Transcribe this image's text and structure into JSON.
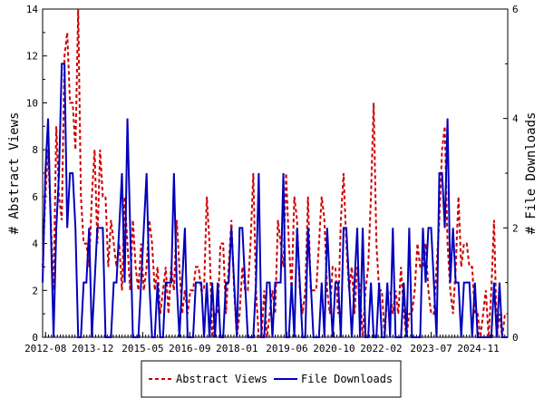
{
  "chart_data": {
    "type": "line",
    "ylabel": "# Abstract Views",
    "y2label": "# File Downloads",
    "ylim": [
      0,
      14
    ],
    "y2lim": [
      0,
      6
    ],
    "yticks": [
      0,
      2,
      4,
      6,
      8,
      10,
      12,
      14
    ],
    "y2ticks": [
      0,
      2,
      4,
      6
    ],
    "xtick_labels": [
      "2012-08",
      "2013-12",
      "2015-05",
      "2016-09",
      "2018-01",
      "2019-06",
      "2020-10",
      "2022-02",
      "2023-07",
      "2024-11"
    ],
    "x_start": "2012-07",
    "x_end": "2025-09",
    "legend_position": "bottom-center",
    "grid": false,
    "series": [
      {
        "name": "Abstract Views",
        "axis": "left",
        "color": "#cc0000",
        "style": "dashed",
        "values": [
          3,
          6,
          8,
          5,
          2,
          9,
          6,
          5,
          12,
          13,
          10,
          10,
          8,
          14,
          6,
          4,
          4,
          3,
          6,
          8,
          4,
          8,
          6,
          6,
          3,
          5,
          4,
          3,
          4,
          2,
          6,
          4,
          2,
          5,
          3,
          2,
          4,
          2,
          3,
          5,
          4,
          2,
          3,
          1,
          2,
          3,
          1,
          3,
          2,
          5,
          3,
          1,
          2,
          1,
          2,
          2,
          3,
          3,
          2,
          2,
          6,
          4,
          0,
          1,
          1,
          4,
          4,
          1,
          3,
          5,
          2,
          0,
          1,
          3,
          2,
          2,
          4,
          7,
          2,
          0,
          0,
          2,
          0,
          1,
          2,
          1,
          5,
          4,
          3,
          7,
          4,
          2,
          6,
          5,
          2,
          1,
          2,
          6,
          2,
          2,
          2,
          4,
          6,
          5,
          2,
          1,
          3,
          3,
          1,
          5,
          7,
          4,
          2,
          3,
          1,
          3,
          2,
          0,
          2,
          3,
          6,
          10,
          4,
          2,
          2,
          0,
          2,
          2,
          1,
          2,
          1,
          3,
          1,
          0,
          1,
          1,
          2,
          4,
          3,
          3,
          4,
          2,
          1,
          1,
          3,
          5,
          8,
          9,
          4,
          2,
          1,
          3,
          6,
          3,
          4,
          4,
          3,
          3,
          1,
          1,
          0,
          1,
          2,
          0,
          2,
          5,
          0,
          1,
          0,
          1,
          1
        ]
      },
      {
        "name": "File Downloads",
        "axis": "right",
        "color": "#0000bb",
        "style": "solid",
        "values": [
          1,
          3,
          4,
          2,
          0,
          2,
          3,
          5,
          5,
          2,
          3,
          3,
          2,
          0,
          0,
          1,
          1,
          2,
          0,
          1,
          2,
          2,
          2,
          0,
          0,
          0,
          1,
          1,
          2,
          3,
          1,
          4,
          2,
          0,
          0,
          0,
          1,
          2,
          3,
          1,
          0,
          0,
          1,
          0,
          0,
          1,
          1,
          1,
          3,
          1,
          0,
          1,
          2,
          0,
          0,
          0,
          1,
          1,
          1,
          0,
          1,
          0,
          1,
          0,
          1,
          0,
          0,
          1,
          1,
          2,
          1,
          0,
          2,
          2,
          1,
          0,
          0,
          0,
          1,
          3,
          0,
          0,
          1,
          1,
          0,
          1,
          1,
          1,
          3,
          0,
          0,
          1,
          0,
          2,
          1,
          0,
          0,
          2,
          1,
          0,
          0,
          0,
          1,
          0,
          2,
          1,
          0,
          1,
          1,
          0,
          2,
          2,
          1,
          0,
          1,
          2,
          0,
          2,
          0,
          0,
          1,
          0,
          0,
          1,
          0,
          0,
          1,
          0,
          2,
          0,
          0,
          0,
          1,
          0,
          2,
          0,
          0,
          0,
          0,
          2,
          1,
          2,
          2,
          1,
          0,
          3,
          3,
          2,
          4,
          1,
          2,
          1,
          1,
          0,
          1,
          1,
          1,
          0,
          1,
          0,
          0,
          0,
          0,
          0,
          0,
          1,
          0,
          1,
          0,
          0,
          0
        ]
      }
    ]
  }
}
